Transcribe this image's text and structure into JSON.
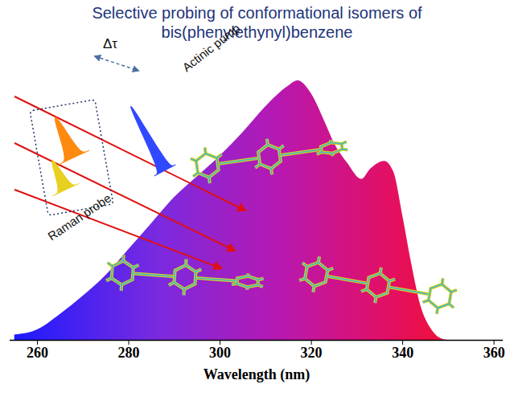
{
  "chart_data": {
    "type": "area",
    "title": "Selective probing of conformational isomers of bis(phenylethynyl)benzene",
    "x_label": "Wavelength (nm)",
    "x": [
      255,
      260,
      265,
      270,
      275,
      280,
      285,
      290,
      295,
      300,
      305,
      310,
      315,
      317,
      320,
      323,
      325,
      328,
      331,
      333,
      336,
      338,
      340,
      342,
      344,
      346,
      348,
      350,
      355,
      360
    ],
    "values": [
      0.02,
      0.04,
      0.1,
      0.17,
      0.25,
      0.35,
      0.45,
      0.55,
      0.63,
      0.71,
      0.8,
      0.9,
      0.98,
      1.0,
      0.95,
      0.84,
      0.76,
      0.68,
      0.62,
      0.66,
      0.69,
      0.65,
      0.48,
      0.29,
      0.13,
      0.05,
      0.01,
      0,
      0,
      0
    ],
    "xlim": [
      254,
      362
    ],
    "xticks": [
      260,
      280,
      300,
      320,
      340,
      360
    ],
    "ylim": [
      0,
      1
    ],
    "tick_labels": "x",
    "annotations": [
      "Actinic pump",
      "Δτ",
      "Raman probe"
    ]
  }
}
